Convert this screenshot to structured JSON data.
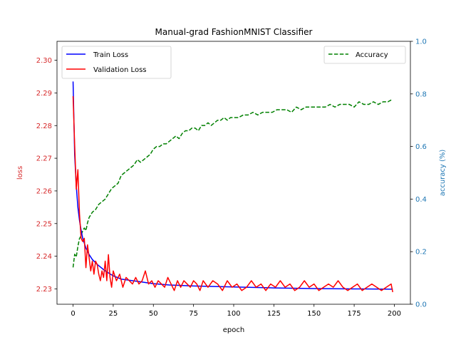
{
  "colors": {
    "train": "#0000ff",
    "validation": "#ff0000",
    "accuracy": "#008000",
    "left_axis": "#d62728",
    "right_axis": "#1f77b4",
    "frame": "#000000"
  },
  "chart_data": {
    "type": "line",
    "title": "Manual-grad FashionMNIST Classifier",
    "xlabel": "epoch",
    "ylabel": "loss",
    "y2label": "accuracy (%)",
    "xlim": [
      -10,
      210
    ],
    "ylim": [
      2.2253,
      2.3058
    ],
    "y2lim": [
      0.0,
      1.0
    ],
    "x_ticks": [
      0,
      25,
      50,
      75,
      100,
      125,
      150,
      175,
      200
    ],
    "y_ticks": [
      2.23,
      2.24,
      2.25,
      2.26,
      2.27,
      2.28,
      2.29,
      2.3
    ],
    "y2_ticks": [
      0.0,
      0.2,
      0.4,
      0.6,
      0.8,
      1.0
    ],
    "legend_left_position": "upper-left",
    "legend_right_position": "upper-right",
    "grid": false,
    "series": [
      {
        "name": "Train Loss",
        "axis": "left",
        "style": "solid",
        "x": [
          0,
          1,
          2,
          3,
          4,
          5,
          6,
          8,
          10,
          12,
          15,
          20,
          25,
          30,
          40,
          50,
          60,
          75,
          100,
          125,
          150,
          175,
          199
        ],
        "y": [
          2.2935,
          2.271,
          2.2615,
          2.255,
          2.251,
          2.248,
          2.2455,
          2.2425,
          2.2405,
          2.239,
          2.2375,
          2.2355,
          2.234,
          2.233,
          2.2323,
          2.2316,
          2.2312,
          2.2309,
          2.2306,
          2.2303,
          2.2301,
          2.23,
          2.2299
        ]
      },
      {
        "name": "Validation Loss",
        "axis": "left",
        "style": "solid",
        "x": [
          0,
          1,
          2,
          3,
          4,
          5,
          6,
          7,
          8,
          9,
          10,
          11,
          12,
          13,
          14,
          15,
          16,
          17,
          18,
          19,
          20,
          21,
          22,
          23,
          24,
          25,
          27,
          29,
          31,
          33,
          35,
          37,
          39,
          41,
          43,
          45,
          47,
          49,
          51,
          53,
          55,
          57,
          59,
          61,
          63,
          65,
          67,
          69,
          71,
          73,
          75,
          77,
          79,
          81,
          84,
          87,
          90,
          93,
          96,
          99,
          102,
          105,
          108,
          111,
          114,
          117,
          120,
          123,
          126,
          129,
          132,
          135,
          138,
          141,
          144,
          147,
          150,
          153,
          156,
          159,
          162,
          165,
          168,
          171,
          174,
          177,
          180,
          183,
          186,
          189,
          192,
          195,
          198,
          199
        ],
        "y": [
          2.289,
          2.274,
          2.2605,
          2.2665,
          2.253,
          2.2455,
          2.2445,
          2.2455,
          2.2365,
          2.2435,
          2.2395,
          2.2355,
          2.2385,
          2.2345,
          2.2385,
          2.2375,
          2.2345,
          2.2325,
          2.2355,
          2.2335,
          2.2385,
          2.2325,
          2.2405,
          2.2335,
          2.2305,
          2.2355,
          2.2325,
          2.2345,
          2.2305,
          2.2335,
          2.2325,
          2.2315,
          2.2335,
          2.2315,
          2.2325,
          2.2355,
          2.2315,
          2.2325,
          2.2305,
          2.2325,
          2.2315,
          2.2305,
          2.2335,
          2.2315,
          2.2295,
          2.2325,
          2.2305,
          2.2325,
          2.2315,
          2.2305,
          2.2325,
          2.2315,
          2.2295,
          2.2325,
          2.2305,
          2.2325,
          2.2315,
          2.2295,
          2.2325,
          2.2305,
          2.2315,
          2.2295,
          2.2305,
          2.2325,
          2.2305,
          2.2315,
          2.2295,
          2.2315,
          2.2305,
          2.2325,
          2.2305,
          2.2315,
          2.2295,
          2.2305,
          2.2325,
          2.2305,
          2.2315,
          2.2295,
          2.2305,
          2.2315,
          2.2305,
          2.2325,
          2.2305,
          2.2295,
          2.2305,
          2.2315,
          2.2295,
          2.2305,
          2.2315,
          2.2305,
          2.2295,
          2.2305,
          2.2315,
          2.229
        ]
      },
      {
        "name": "Accuracy",
        "axis": "right",
        "style": "dashed",
        "x": [
          0,
          1,
          2,
          3,
          4,
          5,
          6,
          7,
          8,
          9,
          10,
          12,
          14,
          16,
          18,
          20,
          22,
          24,
          26,
          28,
          30,
          32,
          34,
          36,
          38,
          40,
          42,
          44,
          46,
          48,
          50,
          52,
          54,
          56,
          58,
          60,
          62,
          64,
          66,
          68,
          70,
          72,
          74,
          76,
          78,
          80,
          82,
          84,
          86,
          88,
          90,
          92,
          94,
          96,
          98,
          100,
          103,
          106,
          109,
          112,
          115,
          118,
          121,
          124,
          127,
          130,
          133,
          136,
          139,
          142,
          145,
          148,
          151,
          154,
          157,
          160,
          163,
          166,
          169,
          172,
          175,
          178,
          181,
          184,
          187,
          190,
          193,
          196,
          199
        ],
        "y": [
          0.14,
          0.19,
          0.18,
          0.22,
          0.25,
          0.26,
          0.28,
          0.29,
          0.28,
          0.31,
          0.33,
          0.35,
          0.36,
          0.38,
          0.39,
          0.4,
          0.42,
          0.44,
          0.45,
          0.46,
          0.49,
          0.5,
          0.51,
          0.52,
          0.53,
          0.55,
          0.54,
          0.55,
          0.56,
          0.57,
          0.59,
          0.6,
          0.6,
          0.61,
          0.61,
          0.62,
          0.63,
          0.64,
          0.63,
          0.65,
          0.66,
          0.66,
          0.67,
          0.67,
          0.66,
          0.68,
          0.68,
          0.69,
          0.68,
          0.69,
          0.7,
          0.7,
          0.71,
          0.7,
          0.71,
          0.71,
          0.71,
          0.72,
          0.72,
          0.73,
          0.72,
          0.73,
          0.73,
          0.73,
          0.74,
          0.74,
          0.74,
          0.73,
          0.75,
          0.74,
          0.75,
          0.75,
          0.75,
          0.75,
          0.75,
          0.76,
          0.75,
          0.76,
          0.76,
          0.76,
          0.75,
          0.77,
          0.76,
          0.76,
          0.77,
          0.76,
          0.77,
          0.77,
          0.78
        ]
      }
    ]
  }
}
